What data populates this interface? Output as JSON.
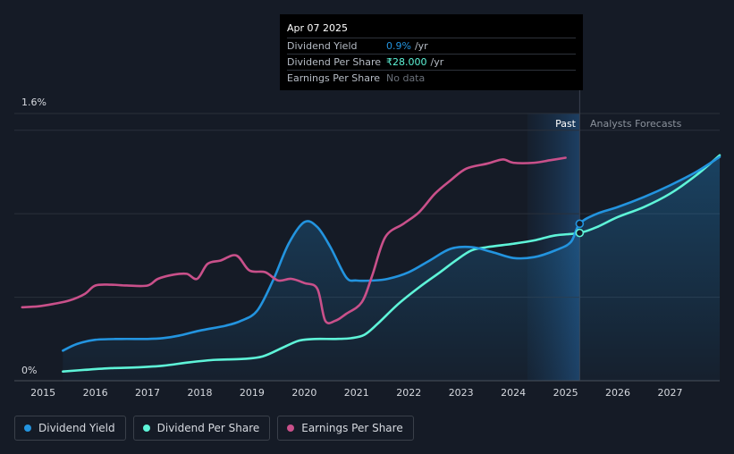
{
  "tooltip": {
    "date": "Apr 07 2025",
    "rows": [
      {
        "label": "Dividend Yield",
        "value": "0.9%",
        "unit": "/yr"
      },
      {
        "label": "Dividend Per Share",
        "value": "₹28.000",
        "unit": "/yr"
      },
      {
        "label": "Earnings Per Share",
        "value": "No data",
        "unit": ""
      }
    ]
  },
  "legend": [
    {
      "label": "Dividend Yield",
      "color": "#2394df"
    },
    {
      "label": "Dividend Per Share",
      "color": "#5ef4d8"
    },
    {
      "label": "Earnings Per Share",
      "color": "#c9508a"
    }
  ],
  "chart_data": {
    "type": "line",
    "y_tick_labels": [
      "1.6%",
      "0%"
    ],
    "x_tick_labels": [
      "2015",
      "2016",
      "2017",
      "2018",
      "2019",
      "2020",
      "2021",
      "2022",
      "2023",
      "2024",
      "2025",
      "2026",
      "2027"
    ],
    "past_label": "Past",
    "forecast_label": "Analysts Forecasts",
    "xlim": [
      2014.45,
      2027.95
    ],
    "ylim": [
      0,
      1.6
    ],
    "gridlines": [
      0,
      0.5,
      1.0,
      1.5,
      1.6
    ],
    "past_end": 2025.27,
    "forecast_band_start": 2024.27,
    "series": [
      {
        "name": "Dividend Yield",
        "color": "#2394df",
        "fill": true,
        "points": [
          [
            2015.38,
            0.18
          ],
          [
            2015.65,
            0.22
          ],
          [
            2016.0,
            0.245
          ],
          [
            2016.5,
            0.25
          ],
          [
            2017.0,
            0.25
          ],
          [
            2017.3,
            0.255
          ],
          [
            2017.6,
            0.27
          ],
          [
            2018.0,
            0.3
          ],
          [
            2018.5,
            0.33
          ],
          [
            2018.8,
            0.36
          ],
          [
            2019.1,
            0.42
          ],
          [
            2019.4,
            0.6
          ],
          [
            2019.7,
            0.82
          ],
          [
            2020.0,
            0.95
          ],
          [
            2020.25,
            0.92
          ],
          [
            2020.5,
            0.8
          ],
          [
            2020.8,
            0.62
          ],
          [
            2021.0,
            0.6
          ],
          [
            2021.3,
            0.6
          ],
          [
            2021.6,
            0.61
          ],
          [
            2022.0,
            0.65
          ],
          [
            2022.4,
            0.72
          ],
          [
            2022.8,
            0.79
          ],
          [
            2023.2,
            0.8
          ],
          [
            2023.6,
            0.77
          ],
          [
            2024.0,
            0.735
          ],
          [
            2024.4,
            0.74
          ],
          [
            2024.8,
            0.78
          ],
          [
            2025.1,
            0.83
          ],
          [
            2025.27,
            0.94
          ],
          [
            2025.6,
            1.0
          ],
          [
            2026.0,
            1.04
          ],
          [
            2026.5,
            1.1
          ],
          [
            2027.0,
            1.17
          ],
          [
            2027.5,
            1.25
          ],
          [
            2027.95,
            1.34
          ]
        ]
      },
      {
        "name": "Dividend Per Share",
        "color": "#5ef4d8",
        "fill": false,
        "points": [
          [
            2015.38,
            0.055
          ],
          [
            2015.8,
            0.065
          ],
          [
            2016.3,
            0.075
          ],
          [
            2016.8,
            0.08
          ],
          [
            2017.3,
            0.09
          ],
          [
            2017.8,
            0.11
          ],
          [
            2018.3,
            0.125
          ],
          [
            2018.8,
            0.13
          ],
          [
            2019.2,
            0.145
          ],
          [
            2019.6,
            0.2
          ],
          [
            2019.9,
            0.24
          ],
          [
            2020.2,
            0.25
          ],
          [
            2020.6,
            0.25
          ],
          [
            2020.9,
            0.255
          ],
          [
            2021.15,
            0.275
          ],
          [
            2021.4,
            0.34
          ],
          [
            2021.8,
            0.46
          ],
          [
            2022.2,
            0.56
          ],
          [
            2022.6,
            0.65
          ],
          [
            2022.9,
            0.72
          ],
          [
            2023.2,
            0.78
          ],
          [
            2023.5,
            0.8
          ],
          [
            2024.0,
            0.82
          ],
          [
            2024.4,
            0.84
          ],
          [
            2024.8,
            0.87
          ],
          [
            2025.27,
            0.885
          ],
          [
            2025.6,
            0.92
          ],
          [
            2026.0,
            0.98
          ],
          [
            2026.5,
            1.04
          ],
          [
            2027.0,
            1.12
          ],
          [
            2027.5,
            1.23
          ],
          [
            2027.95,
            1.35
          ]
        ]
      },
      {
        "name": "Earnings Per Share",
        "color": "#c9508a",
        "fill": false,
        "points": [
          [
            2014.6,
            0.44
          ],
          [
            2014.9,
            0.445
          ],
          [
            2015.2,
            0.46
          ],
          [
            2015.5,
            0.48
          ],
          [
            2015.8,
            0.52
          ],
          [
            2016.0,
            0.57
          ],
          [
            2016.3,
            0.575
          ],
          [
            2016.6,
            0.57
          ],
          [
            2017.0,
            0.57
          ],
          [
            2017.2,
            0.61
          ],
          [
            2017.5,
            0.635
          ],
          [
            2017.75,
            0.64
          ],
          [
            2017.95,
            0.61
          ],
          [
            2018.15,
            0.7
          ],
          [
            2018.4,
            0.72
          ],
          [
            2018.7,
            0.75
          ],
          [
            2018.95,
            0.66
          ],
          [
            2019.25,
            0.65
          ],
          [
            2019.5,
            0.6
          ],
          [
            2019.75,
            0.61
          ],
          [
            2020.0,
            0.585
          ],
          [
            2020.25,
            0.55
          ],
          [
            2020.4,
            0.36
          ],
          [
            2020.6,
            0.36
          ],
          [
            2020.8,
            0.4
          ],
          [
            2021.1,
            0.47
          ],
          [
            2021.3,
            0.63
          ],
          [
            2021.55,
            0.86
          ],
          [
            2021.9,
            0.94
          ],
          [
            2022.2,
            1.01
          ],
          [
            2022.5,
            1.12
          ],
          [
            2022.8,
            1.2
          ],
          [
            2023.1,
            1.27
          ],
          [
            2023.5,
            1.3
          ],
          [
            2023.8,
            1.325
          ],
          [
            2024.0,
            1.305
          ],
          [
            2024.4,
            1.305
          ],
          [
            2024.7,
            1.32
          ],
          [
            2025.0,
            1.335
          ]
        ]
      }
    ],
    "markers": [
      {
        "series": "Dividend Per Share",
        "x": 2025.27,
        "y": 0.885
      },
      {
        "series": "Dividend Yield",
        "x": 2025.27,
        "y": 0.94
      }
    ]
  }
}
